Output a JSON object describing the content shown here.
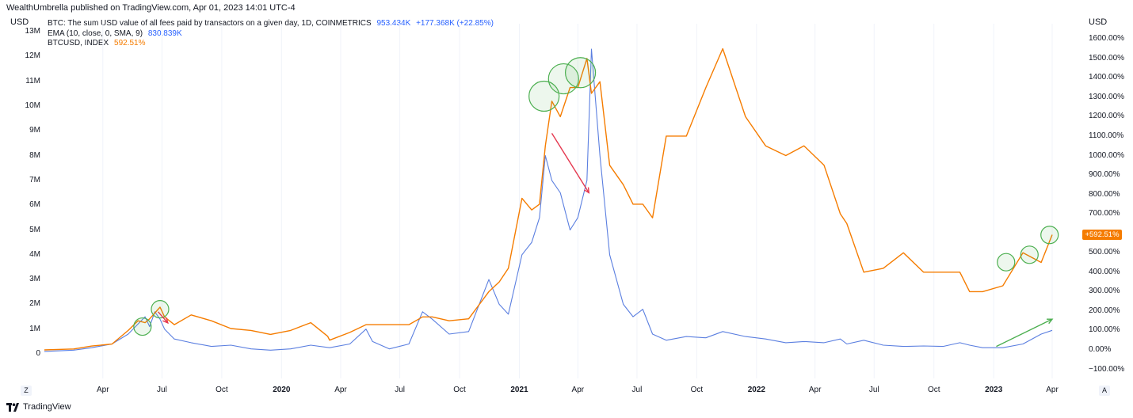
{
  "header": {
    "published": "WealthUmbrella published on TradingView.com, Apr 01, 2023 14:01 UTC-4",
    "left_unit": "USD",
    "right_unit": "USD"
  },
  "legend": {
    "series1_name": "BTC: The sum USD value of all fees paid by transactors on a given day, 1D, COINMETRICS",
    "series1_value": "953.434K",
    "series1_change": "+177.368K (+22.85%)",
    "series2_name": "EMA (10, close, 0, SMA, 9)",
    "series2_value": "830.839K",
    "series3_name": "BTCUSD, INDEX",
    "series3_value": "592.51%"
  },
  "price_badge": "+592.51%",
  "corner_left": "Z",
  "corner_right": "A",
  "branding": "TradingView",
  "colors": {
    "fees": "#5b7fe0",
    "btc": "#f57c00",
    "up_arrow": "#4caf50",
    "down_arrow": "#e53950",
    "circle": "#4caf50"
  },
  "chart_data": {
    "type": "line",
    "left_axis": {
      "label": "USD",
      "ticks": [
        "0",
        "1M",
        "2M",
        "3M",
        "4M",
        "5M",
        "6M",
        "7M",
        "8M",
        "9M",
        "10M",
        "11M",
        "12M",
        "13M"
      ],
      "range": [
        0,
        13000000
      ]
    },
    "right_axis": {
      "label": "USD",
      "ticks": [
        "−100.00%",
        "0.00%",
        "100.00%",
        "200.00%",
        "300.00%",
        "400.00%",
        "500.00%",
        "600.00%",
        "700.00%",
        "800.00%",
        "900.00%",
        "1000.00%",
        "1100.00%",
        "1200.00%",
        "1300.00%",
        "1400.00%",
        "1500.00%",
        "1600.00%"
      ],
      "range": [
        -100,
        1600
      ]
    },
    "x_ticks": [
      {
        "label": "Apr",
        "date": "2019-04-01"
      },
      {
        "label": "Jul",
        "date": "2019-07-01"
      },
      {
        "label": "Oct",
        "date": "2019-10-01"
      },
      {
        "label": "2020",
        "date": "2020-01-01",
        "year": true
      },
      {
        "label": "Apr",
        "date": "2020-04-01"
      },
      {
        "label": "Jul",
        "date": "2020-07-01"
      },
      {
        "label": "Oct",
        "date": "2020-10-01"
      },
      {
        "label": "2021",
        "date": "2021-01-01",
        "year": true
      },
      {
        "label": "Apr",
        "date": "2021-04-01"
      },
      {
        "label": "Jul",
        "date": "2021-07-01"
      },
      {
        "label": "Oct",
        "date": "2021-10-01"
      },
      {
        "label": "2022",
        "date": "2022-01-01",
        "year": true
      },
      {
        "label": "Apr",
        "date": "2022-04-01"
      },
      {
        "label": "Jul",
        "date": "2022-07-01"
      },
      {
        "label": "Oct",
        "date": "2022-10-01"
      },
      {
        "label": "2023",
        "date": "2023-01-01",
        "year": true
      },
      {
        "label": "Apr",
        "date": "2023-04-01"
      }
    ],
    "series": [
      {
        "name": "BTC: The sum USD value of all fees paid by transactors on a given day, 1D, COINMETRICS",
        "axis": "left",
        "points": [
          [
            "2019-01-01",
            100000
          ],
          [
            "2019-02-15",
            150000
          ],
          [
            "2019-03-15",
            250000
          ],
          [
            "2019-04-15",
            400000
          ],
          [
            "2019-05-10",
            800000
          ],
          [
            "2019-05-25",
            1200000
          ],
          [
            "2019-06-05",
            1500000
          ],
          [
            "2019-06-12",
            1100000
          ],
          [
            "2019-06-20",
            1700000
          ],
          [
            "2019-06-28",
            1400000
          ],
          [
            "2019-07-05",
            1000000
          ],
          [
            "2019-07-20",
            600000
          ],
          [
            "2019-08-15",
            450000
          ],
          [
            "2019-09-15",
            300000
          ],
          [
            "2019-10-15",
            350000
          ],
          [
            "2019-11-15",
            200000
          ],
          [
            "2019-12-15",
            150000
          ],
          [
            "2020-01-15",
            200000
          ],
          [
            "2020-02-15",
            350000
          ],
          [
            "2020-03-15",
            250000
          ],
          [
            "2020-04-15",
            400000
          ],
          [
            "2020-05-10",
            1000000
          ],
          [
            "2020-05-20",
            500000
          ],
          [
            "2020-06-15",
            200000
          ],
          [
            "2020-07-15",
            400000
          ],
          [
            "2020-08-05",
            1700000
          ],
          [
            "2020-08-20",
            1400000
          ],
          [
            "2020-09-15",
            800000
          ],
          [
            "2020-10-15",
            900000
          ],
          [
            "2020-11-15",
            3000000
          ],
          [
            "2020-12-01",
            2000000
          ],
          [
            "2020-12-15",
            1600000
          ],
          [
            "2021-01-05",
            4000000
          ],
          [
            "2021-01-20",
            4500000
          ],
          [
            "2021-02-01",
            5500000
          ],
          [
            "2021-02-10",
            8000000
          ],
          [
            "2021-02-20",
            7000000
          ],
          [
            "2021-03-05",
            6500000
          ],
          [
            "2021-03-20",
            5000000
          ],
          [
            "2021-04-01",
            5500000
          ],
          [
            "2021-04-15",
            7000000
          ],
          [
            "2021-04-22",
            12300000
          ],
          [
            "2021-05-05",
            8000000
          ],
          [
            "2021-05-20",
            4000000
          ],
          [
            "2021-06-10",
            2000000
          ],
          [
            "2021-06-25",
            1500000
          ],
          [
            "2021-07-10",
            1800000
          ],
          [
            "2021-07-25",
            800000
          ],
          [
            "2021-08-15",
            550000
          ],
          [
            "2021-09-15",
            700000
          ],
          [
            "2021-10-15",
            650000
          ],
          [
            "2021-11-10",
            900000
          ],
          [
            "2021-12-15",
            700000
          ],
          [
            "2022-01-15",
            600000
          ],
          [
            "2022-02-15",
            450000
          ],
          [
            "2022-03-15",
            500000
          ],
          [
            "2022-04-15",
            450000
          ],
          [
            "2022-05-10",
            600000
          ],
          [
            "2022-05-20",
            400000
          ],
          [
            "2022-06-15",
            550000
          ],
          [
            "2022-07-15",
            350000
          ],
          [
            "2022-08-15",
            300000
          ],
          [
            "2022-09-15",
            320000
          ],
          [
            "2022-10-15",
            300000
          ],
          [
            "2022-11-10",
            450000
          ],
          [
            "2022-11-25",
            350000
          ],
          [
            "2022-12-15",
            250000
          ],
          [
            "2023-01-15",
            250000
          ],
          [
            "2023-02-15",
            400000
          ],
          [
            "2023-03-15",
            800000
          ],
          [
            "2023-04-01",
            950000
          ]
        ]
      },
      {
        "name": "BTCUSD, INDEX",
        "axis": "right",
        "points": [
          [
            "2019-01-01",
            0
          ],
          [
            "2019-02-15",
            5
          ],
          [
            "2019-03-15",
            20
          ],
          [
            "2019-04-15",
            30
          ],
          [
            "2019-05-10",
            100
          ],
          [
            "2019-05-25",
            150
          ],
          [
            "2019-06-05",
            140
          ],
          [
            "2019-06-12",
            160
          ],
          [
            "2019-06-20",
            190
          ],
          [
            "2019-06-28",
            220
          ],
          [
            "2019-07-05",
            170
          ],
          [
            "2019-07-20",
            130
          ],
          [
            "2019-08-15",
            180
          ],
          [
            "2019-09-15",
            150
          ],
          [
            "2019-10-15",
            110
          ],
          [
            "2019-11-15",
            100
          ],
          [
            "2019-12-15",
            80
          ],
          [
            "2020-01-15",
            100
          ],
          [
            "2020-02-15",
            140
          ],
          [
            "2020-03-12",
            70
          ],
          [
            "2020-03-15",
            50
          ],
          [
            "2020-04-15",
            90
          ],
          [
            "2020-05-10",
            130
          ],
          [
            "2020-06-15",
            130
          ],
          [
            "2020-07-15",
            130
          ],
          [
            "2020-08-05",
            170
          ],
          [
            "2020-08-20",
            170
          ],
          [
            "2020-09-15",
            150
          ],
          [
            "2020-10-15",
            160
          ],
          [
            "2020-11-15",
            300
          ],
          [
            "2020-12-01",
            350
          ],
          [
            "2020-12-15",
            420
          ],
          [
            "2021-01-05",
            780
          ],
          [
            "2021-01-20",
            720
          ],
          [
            "2021-02-01",
            750
          ],
          [
            "2021-02-10",
            1050
          ],
          [
            "2021-02-20",
            1280
          ],
          [
            "2021-03-05",
            1200
          ],
          [
            "2021-03-20",
            1350
          ],
          [
            "2021-04-01",
            1350
          ],
          [
            "2021-04-15",
            1500
          ],
          [
            "2021-04-22",
            1320
          ],
          [
            "2021-05-05",
            1380
          ],
          [
            "2021-05-20",
            950
          ],
          [
            "2021-06-10",
            850
          ],
          [
            "2021-06-25",
            750
          ],
          [
            "2021-07-10",
            750
          ],
          [
            "2021-07-25",
            680
          ],
          [
            "2021-08-15",
            1100
          ],
          [
            "2021-09-15",
            1100
          ],
          [
            "2021-10-15",
            1350
          ],
          [
            "2021-11-10",
            1550
          ],
          [
            "2021-12-15",
            1200
          ],
          [
            "2022-01-15",
            1050
          ],
          [
            "2022-02-15",
            1000
          ],
          [
            "2022-03-15",
            1050
          ],
          [
            "2022-04-15",
            950
          ],
          [
            "2022-05-10",
            700
          ],
          [
            "2022-05-20",
            650
          ],
          [
            "2022-06-15",
            400
          ],
          [
            "2022-07-15",
            420
          ],
          [
            "2022-08-15",
            500
          ],
          [
            "2022-09-15",
            400
          ],
          [
            "2022-10-15",
            400
          ],
          [
            "2022-11-10",
            400
          ],
          [
            "2022-11-25",
            300
          ],
          [
            "2022-12-15",
            300
          ],
          [
            "2023-01-15",
            330
          ],
          [
            "2023-02-15",
            500
          ],
          [
            "2023-03-15",
            450
          ],
          [
            "2023-04-01",
            592.51
          ]
        ]
      }
    ],
    "annotations": {
      "circles": [
        {
          "date": "2019-06-01",
          "axis": "left",
          "value": 1100000,
          "r": 11
        },
        {
          "date": "2019-06-28",
          "axis": "left",
          "value": 1800000,
          "r": 11
        },
        {
          "date": "2021-02-08",
          "axis": "left",
          "value": 10400000,
          "r": 19
        },
        {
          "date": "2021-03-10",
          "axis": "left",
          "value": 11100000,
          "r": 19
        },
        {
          "date": "2021-04-05",
          "axis": "left",
          "value": 11350000,
          "r": 19
        },
        {
          "date": "2023-01-20",
          "axis": "left",
          "value": 3700000,
          "r": 11
        },
        {
          "date": "2023-02-25",
          "axis": "left",
          "value": 4000000,
          "r": 11
        },
        {
          "date": "2023-03-28",
          "axis": "left",
          "value": 4800000,
          "r": 11
        }
      ],
      "arrows": [
        {
          "from": [
            "2019-06-25",
            1700000
          ],
          "to": [
            "2019-07-10",
            1250000
          ],
          "color": "down_arrow"
        },
        {
          "from": [
            "2021-02-20",
            8900000
          ],
          "to": [
            "2021-04-18",
            6500000
          ],
          "color": "down_arrow"
        },
        {
          "from": [
            "2023-01-05",
            300000
          ],
          "to": [
            "2023-04-01",
            1400000
          ],
          "color": "up_arrow"
        }
      ]
    }
  }
}
